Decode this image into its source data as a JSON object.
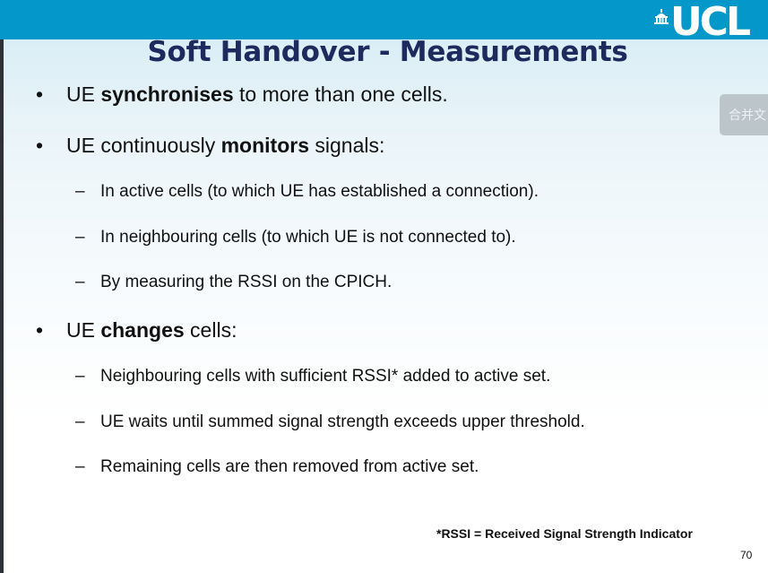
{
  "header": {
    "logo_text": "UCL",
    "bar_color": "#0398c9"
  },
  "slide": {
    "title": "Soft Handover - Measurements",
    "title_color": "#1c2a5e"
  },
  "bullets": [
    {
      "marker": "•",
      "parts": [
        "UE ",
        "synchronises",
        " to more than one cells."
      ]
    },
    {
      "marker": "•",
      "parts": [
        "UE continuously ",
        "monitors",
        " signals:"
      ]
    },
    {
      "marker": "–",
      "text": "In active cells (to which UE has established a connection)."
    },
    {
      "marker": "–",
      "text": "In neighbouring cells (to which UE is not connected to)."
    },
    {
      "marker": "–",
      "text": "By measuring the RSSI on the CPICH."
    },
    {
      "marker": "•",
      "parts": [
        "UE ",
        "changes",
        " cells:"
      ]
    },
    {
      "marker": "–",
      "text": "Neighbouring cells with sufficient RSSI* added to active set."
    },
    {
      "marker": "–",
      "text": "UE waits until summed signal strength exceeds upper threshold."
    },
    {
      "marker": "–",
      "text": "Remaining cells are then removed from active set."
    }
  ],
  "side_button": {
    "label": "合并文"
  },
  "footnote": "*RSSI = Received Signal Strength Indicator",
  "page_number": "70"
}
